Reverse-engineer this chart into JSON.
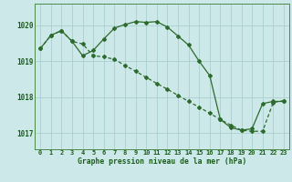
{
  "title": "Graphe pression niveau de la mer (hPa)",
  "background_color": "#cce8e8",
  "grid_color": "#aacfcf",
  "line_color": "#2d6b2d",
  "xlim": [
    -0.5,
    23.5
  ],
  "ylim": [
    1016.55,
    1020.6
  ],
  "y_ticks": [
    1017,
    1018,
    1019,
    1020
  ],
  "x_ticks": [
    0,
    1,
    2,
    3,
    4,
    5,
    6,
    7,
    8,
    9,
    10,
    11,
    12,
    13,
    14,
    15,
    16,
    17,
    18,
    19,
    20,
    21,
    22,
    23
  ],
  "line1_x": [
    0,
    1,
    2,
    3,
    4,
    5,
    6,
    7,
    8,
    9,
    10,
    11,
    12,
    13,
    14,
    15,
    16,
    17,
    18,
    19,
    20,
    21,
    22,
    23
  ],
  "line1_y": [
    1019.35,
    1019.72,
    1019.85,
    1019.55,
    1019.15,
    1019.3,
    1019.62,
    1019.92,
    1020.02,
    1020.1,
    1020.08,
    1020.1,
    1019.95,
    1019.7,
    1019.45,
    1019.0,
    1018.6,
    1017.38,
    1017.15,
    1017.08,
    1017.12,
    1017.82,
    1017.88,
    1017.88
  ],
  "line2_x": [
    0,
    1,
    2,
    3,
    4,
    5,
    6,
    7,
    8,
    9,
    10,
    11,
    12,
    13,
    14,
    15,
    16,
    17,
    18,
    19,
    20,
    21,
    22,
    23
  ],
  "line2_y": [
    1019.35,
    1019.72,
    1019.85,
    1019.55,
    1019.48,
    1019.15,
    1019.12,
    1019.05,
    1018.88,
    1018.72,
    1018.55,
    1018.38,
    1018.22,
    1018.05,
    1017.88,
    1017.72,
    1017.55,
    1017.38,
    1017.22,
    1017.08,
    1017.05,
    1017.05,
    1017.85,
    1017.9
  ]
}
